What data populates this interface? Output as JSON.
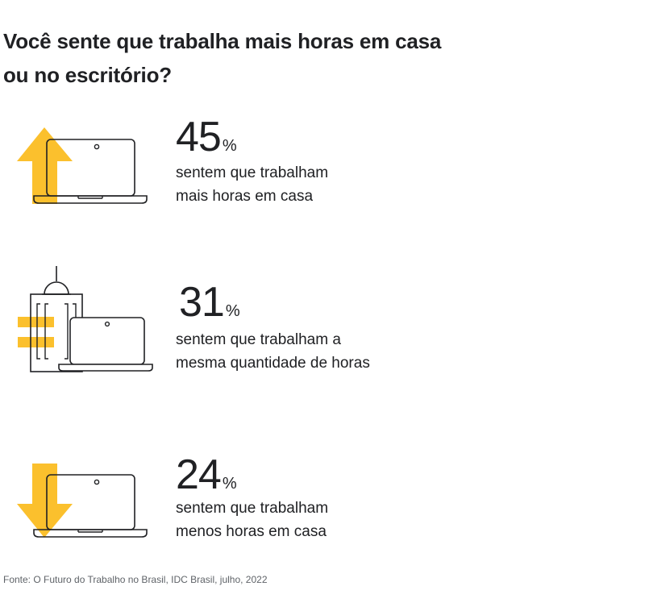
{
  "title": "Você sente que trabalha mais horas em casa ou no escritório?",
  "colors": {
    "accent": "#FBC02D",
    "line": "#202124"
  },
  "chart_data": {
    "type": "table",
    "title": "Você sente que trabalha mais horas em casa ou no escritório?",
    "unit": "%",
    "items": [
      {
        "value": 45,
        "label": "45",
        "unit": "%",
        "line1": "sentem que trabalham",
        "line2": "mais horas em casa",
        "icon": "arrow-up-laptop-icon"
      },
      {
        "value": 31,
        "label": "31",
        "unit": "%",
        "line1": "sentem que trabalham a",
        "line2": "mesma quantidade de horas",
        "icon": "equal-office-laptop-icon"
      },
      {
        "value": 24,
        "label": "24",
        "unit": "%",
        "line1": "sentem que trabalham",
        "line2": "menos horas em casa",
        "icon": "arrow-down-laptop-icon"
      }
    ]
  },
  "source": "Fonte: O Futuro do Trabalho no Brasil, IDC Brasil, julho, 2022"
}
